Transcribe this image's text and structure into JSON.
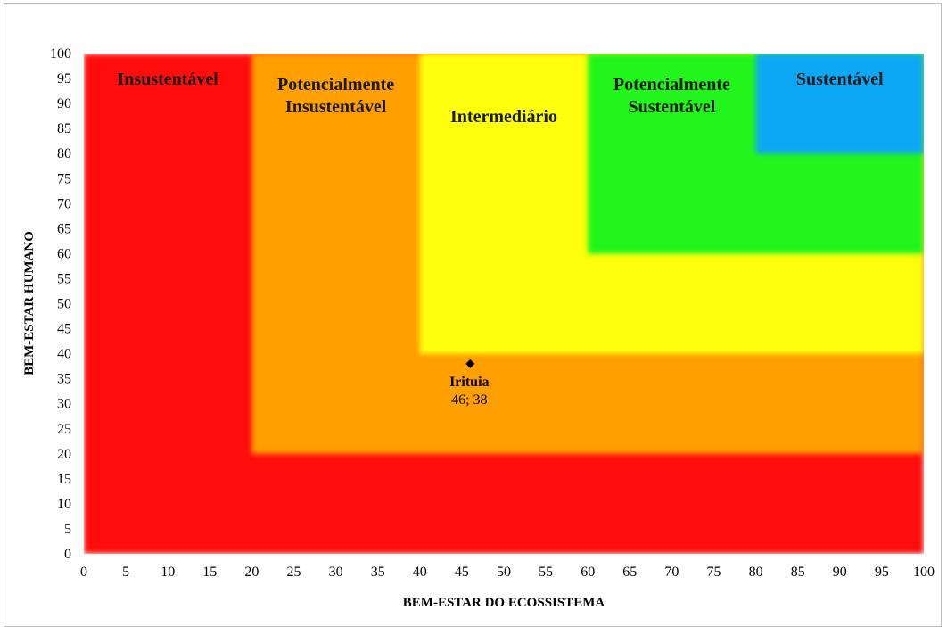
{
  "chart_data": {
    "type": "scatter",
    "xlabel": "BEM-ESTAR DO ECOSSISTEMA",
    "ylabel": "BEM-ESTAR HUMANO",
    "xlim": [
      0,
      100
    ],
    "ylim": [
      0,
      100
    ],
    "x_ticks": [
      "0",
      "5",
      "10",
      "15",
      "20",
      "25",
      "30",
      "35",
      "40",
      "45",
      "50",
      "55",
      "60",
      "65",
      "70",
      "75",
      "80",
      "85",
      "90",
      "95",
      "100"
    ],
    "y_ticks": [
      "0",
      "5",
      "10",
      "15",
      "20",
      "25",
      "30",
      "35",
      "40",
      "45",
      "50",
      "55",
      "60",
      "65",
      "70",
      "75",
      "80",
      "85",
      "90",
      "95",
      "100"
    ],
    "zones": [
      {
        "label": [
          "Insustentável"
        ],
        "min": 0,
        "color": "#ff0a0a"
      },
      {
        "label": [
          "Potencialmente",
          "Insustentável"
        ],
        "min": 20,
        "color": "#ff9f00"
      },
      {
        "label": [
          "Intermediário"
        ],
        "min": 40,
        "color": "#ffff10"
      },
      {
        "label": [
          "Potencialmente",
          "Sustentável"
        ],
        "min": 60,
        "color": "#22f51c"
      },
      {
        "label": [
          "Sustentável"
        ],
        "min": 80,
        "color": "#0aa8f5"
      }
    ],
    "points": [
      {
        "name": "Irituia",
        "x": 46,
        "y": 38,
        "value_label": "46; 38"
      }
    ]
  }
}
